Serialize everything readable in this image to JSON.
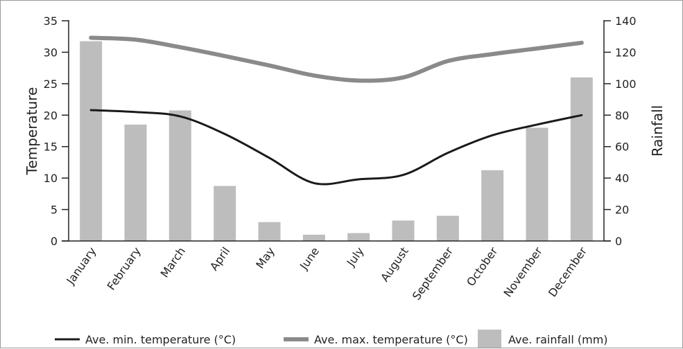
{
  "chart_data": {
    "type": "bar",
    "categories": [
      "January",
      "February",
      "March",
      "April",
      "May",
      "June",
      "July",
      "August",
      "September",
      "October",
      "November",
      "December"
    ],
    "series": [
      {
        "name": "Ave. min. temperature (°C)",
        "type": "line",
        "axis": "left",
        "color": "#1a1a1a",
        "values": [
          20.8,
          20.5,
          19.8,
          17.0,
          13.2,
          9.2,
          9.8,
          10.5,
          14.0,
          16.8,
          18.5,
          20.0
        ]
      },
      {
        "name": "Ave. max. temperature (°C)",
        "type": "line",
        "axis": "left",
        "color": "#8a8a8a",
        "values": [
          32.3,
          32.0,
          30.8,
          29.4,
          27.9,
          26.3,
          25.5,
          26.0,
          28.6,
          29.7,
          30.6,
          31.5
        ]
      },
      {
        "name": "Ave. rainfall (mm)",
        "type": "bar",
        "axis": "right",
        "color": "#bdbdbd",
        "values": [
          127,
          74,
          83,
          35,
          12,
          4,
          5,
          13,
          16,
          45,
          72,
          104
        ]
      }
    ],
    "ylabel": "Temperature",
    "ylabel_right": "Rainfall",
    "ylim": [
      0,
      35
    ],
    "ylim_right": [
      0,
      140
    ],
    "yticks": [
      "0",
      "5",
      "10",
      "15",
      "20",
      "25",
      "30",
      "35"
    ],
    "yticks_right": [
      "0",
      "20",
      "40",
      "60",
      "80",
      "100",
      "120",
      "140"
    ],
    "grid": false,
    "legend_position": "bottom"
  }
}
